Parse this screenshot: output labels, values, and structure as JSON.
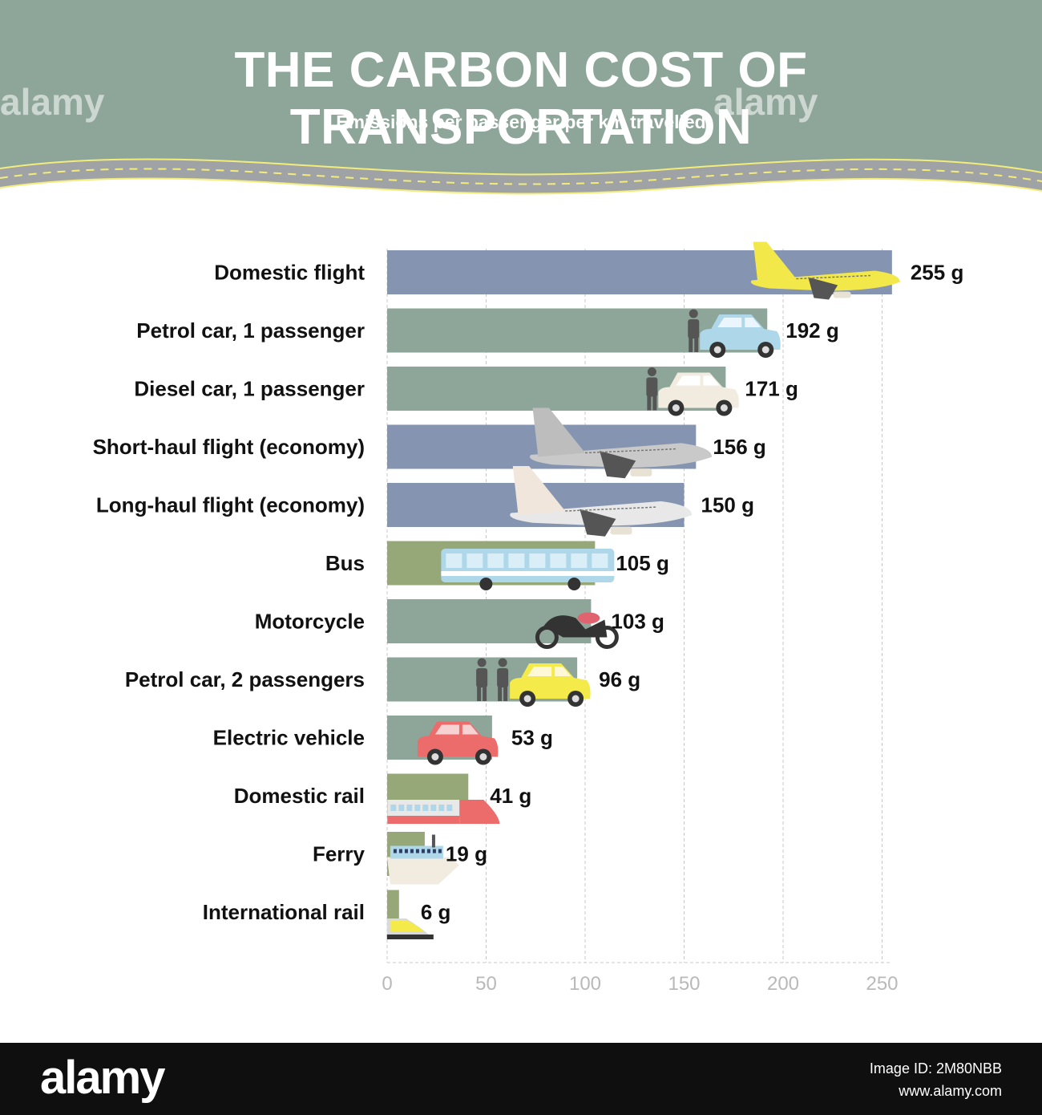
{
  "header": {
    "title": "THE CARBON COST OF TRANSPORTATION",
    "subtitle": "Emissions per passenger per km travelled",
    "bg_color": "#8ea699",
    "watermark": "alamy"
  },
  "chart_data": {
    "type": "bar",
    "orientation": "horizontal",
    "title": "THE CARBON COST OF TRANSPORTATION",
    "subtitle": "Emissions per passenger per km travelled",
    "categories": [
      "Domestic flight",
      "Petrol car, 1 passenger",
      "Diesel car, 1 passenger",
      "Short-haul flight (economy)",
      "Long-haul flight (economy)",
      "Bus",
      "Motorcycle",
      "Petrol car, 2 passengers",
      "Electric vehicle",
      "Domestic rail",
      "Ferry",
      "International rail"
    ],
    "values": [
      255,
      192,
      171,
      156,
      150,
      105,
      103,
      96,
      53,
      41,
      19,
      6
    ],
    "value_labels": [
      "255 g",
      "192 g",
      "171 g",
      "156 g",
      "150 g",
      "105 g",
      "103 g",
      "96 g",
      "53 g",
      "41 g",
      "19 g",
      "6 g"
    ],
    "bar_colors": [
      "#8594b0",
      "#8ea699",
      "#8ea699",
      "#8594b0",
      "#8594b0",
      "#97a878",
      "#8ea699",
      "#8ea699",
      "#8ea699",
      "#97a878",
      "#97a878",
      "#97a878"
    ],
    "icons": [
      "airplane-icon",
      "person-car-icon",
      "person-car-icon",
      "airplane-icon",
      "airplane-icon",
      "bus-icon",
      "motorcycle-icon",
      "two-persons-car-icon",
      "electric-car-icon",
      "train-icon",
      "ferry-icon",
      "high-speed-train-icon"
    ],
    "xticks": [
      0,
      50,
      100,
      150,
      200,
      250
    ],
    "xlim": [
      0,
      255
    ],
    "xlabel": "",
    "ylabel": "",
    "grid": "vertical-dashed",
    "legend": "none"
  },
  "footer": {
    "logo": "alamy",
    "image_id": "Image ID: 2M80NBB",
    "url": "www.alamy.com"
  }
}
